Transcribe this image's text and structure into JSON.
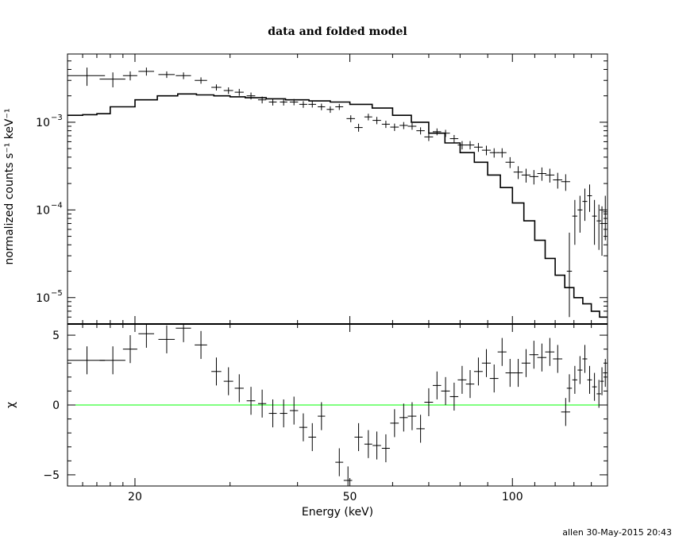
{
  "chart_data": {
    "title": "data and folded model",
    "xlabel": "Energy (keV)",
    "x_scale": "log",
    "xlim": [
      15,
      150
    ],
    "x_tick_labels": [
      "20",
      "50",
      "100"
    ],
    "footer": "allen 30-May-2015 20:43",
    "panels": [
      {
        "name": "spectrum",
        "type": "line",
        "ylabel": "normalized counts s⁻¹ keV⁻¹",
        "y_scale": "log",
        "ylim": [
          5e-06,
          0.006
        ],
        "y_tick_labels": [
          {
            "value": 0.001,
            "base": "10",
            "exp": "−3"
          },
          {
            "value": 0.0001,
            "base": "10",
            "exp": "−4"
          },
          {
            "value": 1e-05,
            "base": "10",
            "exp": "−5"
          }
        ],
        "data": [
          {
            "x": 16.3,
            "xerr": 1.3,
            "y": 0.0034,
            "yerr_lo": 0.0008,
            "yerr_hi": 0.0008
          },
          {
            "x": 18.2,
            "xerr": 1.0,
            "y": 0.0031,
            "yerr_lo": 0.0006,
            "yerr_hi": 0.0006
          },
          {
            "x": 19.6,
            "xerr": 0.6,
            "y": 0.0034,
            "yerr_lo": 0.0004,
            "yerr_hi": 0.0004
          },
          {
            "x": 21.0,
            "xerr": 0.7,
            "y": 0.0038,
            "yerr_lo": 0.0004,
            "yerr_hi": 0.0004
          },
          {
            "x": 22.9,
            "xerr": 0.8,
            "y": 0.0035,
            "yerr_lo": 0.0003,
            "yerr_hi": 0.0003
          },
          {
            "x": 24.6,
            "xerr": 0.8,
            "y": 0.0034,
            "yerr_lo": 0.0003,
            "yerr_hi": 0.0003
          },
          {
            "x": 26.5,
            "xerr": 0.7,
            "y": 0.003,
            "yerr_lo": 0.00025,
            "yerr_hi": 0.00025
          },
          {
            "x": 28.3,
            "xerr": 0.6,
            "y": 0.0025,
            "yerr_lo": 0.0002,
            "yerr_hi": 0.0002
          },
          {
            "x": 29.8,
            "xerr": 0.6,
            "y": 0.0023,
            "yerr_lo": 0.0002,
            "yerr_hi": 0.0002
          },
          {
            "x": 31.2,
            "xerr": 0.6,
            "y": 0.0022,
            "yerr_lo": 0.0002,
            "yerr_hi": 0.0002
          },
          {
            "x": 32.8,
            "xerr": 0.6,
            "y": 0.002,
            "yerr_lo": 0.00018,
            "yerr_hi": 0.00018
          },
          {
            "x": 34.4,
            "xerr": 0.6,
            "y": 0.0018,
            "yerr_lo": 0.00016,
            "yerr_hi": 0.00016
          },
          {
            "x": 36.0,
            "xerr": 0.6,
            "y": 0.0017,
            "yerr_lo": 0.00015,
            "yerr_hi": 0.00015
          },
          {
            "x": 37.7,
            "xerr": 0.6,
            "y": 0.0017,
            "yerr_lo": 0.00015,
            "yerr_hi": 0.00015
          },
          {
            "x": 39.4,
            "xerr": 0.7,
            "y": 0.0017,
            "yerr_lo": 0.00014,
            "yerr_hi": 0.00014
          },
          {
            "x": 41.0,
            "xerr": 0.7,
            "y": 0.0016,
            "yerr_lo": 0.00014,
            "yerr_hi": 0.00014
          },
          {
            "x": 42.6,
            "xerr": 0.7,
            "y": 0.0016,
            "yerr_lo": 0.00013,
            "yerr_hi": 0.00013
          },
          {
            "x": 44.3,
            "xerr": 0.7,
            "y": 0.0015,
            "yerr_lo": 0.00013,
            "yerr_hi": 0.00013
          },
          {
            "x": 46.0,
            "xerr": 0.7,
            "y": 0.0014,
            "yerr_lo": 0.00012,
            "yerr_hi": 0.00012
          },
          {
            "x": 47.8,
            "xerr": 0.8,
            "y": 0.0015,
            "yerr_lo": 0.00012,
            "yerr_hi": 0.00012
          },
          {
            "x": 50.2,
            "xerr": 0.9,
            "y": 0.0011,
            "yerr_lo": 0.0001,
            "yerr_hi": 0.0001
          },
          {
            "x": 51.9,
            "xerr": 0.9,
            "y": 0.00087,
            "yerr_lo": 9e-05,
            "yerr_hi": 9e-05
          },
          {
            "x": 54.1,
            "xerr": 0.9,
            "y": 0.00115,
            "yerr_lo": 0.0001,
            "yerr_hi": 0.0001
          },
          {
            "x": 56.1,
            "xerr": 1.0,
            "y": 0.00105,
            "yerr_lo": 0.0001,
            "yerr_hi": 0.0001
          },
          {
            "x": 58.3,
            "xerr": 1.0,
            "y": 0.00095,
            "yerr_lo": 9e-05,
            "yerr_hi": 9e-05
          },
          {
            "x": 60.5,
            "xerr": 1.1,
            "y": 0.00088,
            "yerr_lo": 8.5e-05,
            "yerr_hi": 8.5e-05
          },
          {
            "x": 62.9,
            "xerr": 1.1,
            "y": 0.00092,
            "yerr_lo": 8.5e-05,
            "yerr_hi": 8.5e-05
          },
          {
            "x": 65.2,
            "xerr": 1.2,
            "y": 0.0009,
            "yerr_lo": 8e-05,
            "yerr_hi": 8e-05
          },
          {
            "x": 67.6,
            "xerr": 1.2,
            "y": 0.0008,
            "yerr_lo": 7.5e-05,
            "yerr_hi": 7.5e-05
          },
          {
            "x": 70.0,
            "xerr": 1.3,
            "y": 0.00068,
            "yerr_lo": 7e-05,
            "yerr_hi": 7e-05
          },
          {
            "x": 72.5,
            "xerr": 1.3,
            "y": 0.00078,
            "yerr_lo": 7e-05,
            "yerr_hi": 7e-05
          },
          {
            "x": 75.2,
            "xerr": 1.4,
            "y": 0.00075,
            "yerr_lo": 7e-05,
            "yerr_hi": 7e-05
          },
          {
            "x": 78.0,
            "xerr": 1.4,
            "y": 0.00065,
            "yerr_lo": 6.5e-05,
            "yerr_hi": 6.5e-05
          },
          {
            "x": 80.7,
            "xerr": 1.5,
            "y": 0.00055,
            "yerr_lo": 6e-05,
            "yerr_hi": 6e-05
          },
          {
            "x": 83.5,
            "xerr": 1.5,
            "y": 0.00055,
            "yerr_lo": 6e-05,
            "yerr_hi": 6e-05
          },
          {
            "x": 86.5,
            "xerr": 1.6,
            "y": 0.00052,
            "yerr_lo": 6e-05,
            "yerr_hi": 6e-05
          },
          {
            "x": 89.5,
            "xerr": 1.7,
            "y": 0.00048,
            "yerr_lo": 6e-05,
            "yerr_hi": 6e-05
          },
          {
            "x": 92.5,
            "xerr": 1.7,
            "y": 0.00045,
            "yerr_lo": 5.5e-05,
            "yerr_hi": 5.5e-05
          },
          {
            "x": 95.7,
            "xerr": 1.8,
            "y": 0.00045,
            "yerr_lo": 5.5e-05,
            "yerr_hi": 5.5e-05
          },
          {
            "x": 99.0,
            "xerr": 1.9,
            "y": 0.00035,
            "yerr_lo": 5e-05,
            "yerr_hi": 5e-05
          },
          {
            "x": 102.5,
            "xerr": 2.0,
            "y": 0.00027,
            "yerr_lo": 4.5e-05,
            "yerr_hi": 4.5e-05
          },
          {
            "x": 106.0,
            "xerr": 2.0,
            "y": 0.00025,
            "yerr_lo": 4.5e-05,
            "yerr_hi": 4.5e-05
          },
          {
            "x": 109.6,
            "xerr": 2.1,
            "y": 0.00024,
            "yerr_lo": 4.5e-05,
            "yerr_hi": 4.5e-05
          },
          {
            "x": 113.4,
            "xerr": 2.2,
            "y": 0.00026,
            "yerr_lo": 4.5e-05,
            "yerr_hi": 4.5e-05
          },
          {
            "x": 117.3,
            "xerr": 2.3,
            "y": 0.00025,
            "yerr_lo": 4.5e-05,
            "yerr_hi": 4.5e-05
          },
          {
            "x": 121.3,
            "xerr": 2.4,
            "y": 0.00022,
            "yerr_lo": 4.5e-05,
            "yerr_hi": 4.5e-05
          },
          {
            "x": 125.5,
            "xerr": 2.4,
            "y": 0.00021,
            "yerr_lo": 4.5e-05,
            "yerr_hi": 4.5e-05
          },
          {
            "x": 127.5,
            "xerr": 1.4,
            "y": 2e-05,
            "yerr_lo": 1.4e-05,
            "yerr_hi": 3.5e-05
          },
          {
            "x": 130.5,
            "xerr": 1.4,
            "y": 8.5e-05,
            "yerr_lo": 4.5e-05,
            "yerr_hi": 4.5e-05
          },
          {
            "x": 133.4,
            "xerr": 1.4,
            "y": 0.0001,
            "yerr_lo": 4.5e-05,
            "yerr_hi": 4.5e-05
          },
          {
            "x": 136.2,
            "xerr": 1.4,
            "y": 0.000125,
            "yerr_lo": 5e-05,
            "yerr_hi": 5e-05
          },
          {
            "x": 139.0,
            "xerr": 1.4,
            "y": 0.000145,
            "yerr_lo": 5e-05,
            "yerr_hi": 5e-05
          },
          {
            "x": 141.9,
            "xerr": 1.4,
            "y": 8.5e-05,
            "yerr_lo": 4.5e-05,
            "yerr_hi": 4.5e-05
          },
          {
            "x": 144.6,
            "xerr": 1.4,
            "y": 7.5e-05,
            "yerr_lo": 4e-05,
            "yerr_hi": 4e-05
          },
          {
            "x": 146.5,
            "xerr": 1.2,
            "y": 7e-05,
            "yerr_lo": 4e-05,
            "yerr_hi": 4e-05
          },
          {
            "x": 148.6,
            "xerr": 1.4,
            "y": 9.5e-05,
            "yerr_lo": 5e-05,
            "yerr_hi": 5e-05
          }
        ],
        "model_x": [
          15,
          16,
          17,
          18,
          20,
          22,
          24,
          26,
          28,
          30,
          32,
          35,
          38,
          42,
          46,
          50,
          55,
          60,
          65,
          70,
          75,
          80,
          85,
          90,
          95,
          100,
          105,
          110,
          115,
          120,
          125,
          130,
          135,
          140,
          145,
          150
        ],
        "model_y": [
          0.0012,
          0.00122,
          0.00125,
          0.0015,
          0.0018,
          0.002,
          0.0021,
          0.00205,
          0.002,
          0.00195,
          0.0019,
          0.00185,
          0.0018,
          0.00175,
          0.0017,
          0.0016,
          0.00145,
          0.0012,
          0.001,
          0.00075,
          0.00058,
          0.00045,
          0.00035,
          0.00025,
          0.00018,
          0.00012,
          7.5e-05,
          4.5e-05,
          2.8e-05,
          1.8e-05,
          1.3e-05,
          1e-05,
          8.5e-06,
          7e-06,
          6e-06,
          5.2e-06
        ]
      },
      {
        "name": "residuals",
        "type": "scatter",
        "ylabel": "χ",
        "ylim": [
          -5.8,
          5.8
        ],
        "y_tick_labels": [
          5,
          0,
          -5
        ],
        "reference_line": {
          "y": 0,
          "color": "#00ff00"
        },
        "data": [
          {
            "x": 16.3,
            "xerr": 1.3,
            "y": 3.2,
            "yerr": 1.0
          },
          {
            "x": 18.2,
            "xerr": 1.0,
            "y": 3.2,
            "yerr": 1.0
          },
          {
            "x": 19.6,
            "xerr": 0.6,
            "y": 4.0,
            "yerr": 1.0
          },
          {
            "x": 21.0,
            "xerr": 0.7,
            "y": 5.1,
            "yerr": 1.0
          },
          {
            "x": 22.9,
            "xerr": 0.8,
            "y": 4.7,
            "yerr": 1.0
          },
          {
            "x": 24.6,
            "xerr": 0.8,
            "y": 5.5,
            "yerr": 1.0
          },
          {
            "x": 26.5,
            "xerr": 0.7,
            "y": 4.3,
            "yerr": 1.0
          },
          {
            "x": 28.3,
            "xerr": 0.6,
            "y": 2.4,
            "yerr": 1.0
          },
          {
            "x": 29.8,
            "xerr": 0.6,
            "y": 1.7,
            "yerr": 1.0
          },
          {
            "x": 31.2,
            "xerr": 0.6,
            "y": 1.2,
            "yerr": 1.0
          },
          {
            "x": 32.8,
            "xerr": 0.6,
            "y": 0.3,
            "yerr": 1.0
          },
          {
            "x": 34.4,
            "xerr": 0.6,
            "y": 0.1,
            "yerr": 1.0
          },
          {
            "x": 36.0,
            "xerr": 0.6,
            "y": -0.6,
            "yerr": 1.0
          },
          {
            "x": 37.7,
            "xerr": 0.6,
            "y": -0.6,
            "yerr": 1.0
          },
          {
            "x": 39.4,
            "xerr": 0.7,
            "y": -0.4,
            "yerr": 1.0
          },
          {
            "x": 41.0,
            "xerr": 0.7,
            "y": -1.6,
            "yerr": 1.0
          },
          {
            "x": 42.6,
            "xerr": 0.7,
            "y": -2.3,
            "yerr": 1.0
          },
          {
            "x": 44.3,
            "xerr": 0.7,
            "y": -0.8,
            "yerr": 1.0
          },
          {
            "x": 47.8,
            "xerr": 0.8,
            "y": -4.1,
            "yerr": 1.0
          },
          {
            "x": 49.6,
            "xerr": 0.9,
            "y": -5.4,
            "yerr": 1.0
          },
          {
            "x": 51.9,
            "xerr": 0.9,
            "y": -2.3,
            "yerr": 1.0
          },
          {
            "x": 54.1,
            "xerr": 0.9,
            "y": -2.8,
            "yerr": 1.0
          },
          {
            "x": 56.1,
            "xerr": 1.0,
            "y": -2.9,
            "yerr": 1.0
          },
          {
            "x": 58.3,
            "xerr": 1.0,
            "y": -3.1,
            "yerr": 1.0
          },
          {
            "x": 60.5,
            "xerr": 1.1,
            "y": -1.3,
            "yerr": 1.0
          },
          {
            "x": 62.9,
            "xerr": 1.1,
            "y": -0.9,
            "yerr": 1.0
          },
          {
            "x": 65.2,
            "xerr": 1.2,
            "y": -0.8,
            "yerr": 1.0
          },
          {
            "x": 67.6,
            "xerr": 1.2,
            "y": -1.7,
            "yerr": 1.0
          },
          {
            "x": 70.0,
            "xerr": 1.3,
            "y": 0.2,
            "yerr": 1.0
          },
          {
            "x": 72.5,
            "xerr": 1.3,
            "y": 1.4,
            "yerr": 1.0
          },
          {
            "x": 75.2,
            "xerr": 1.4,
            "y": 1.0,
            "yerr": 1.0
          },
          {
            "x": 78.0,
            "xerr": 1.4,
            "y": 0.6,
            "yerr": 1.0
          },
          {
            "x": 80.7,
            "xerr": 1.5,
            "y": 1.8,
            "yerr": 1.0
          },
          {
            "x": 83.5,
            "xerr": 1.5,
            "y": 1.5,
            "yerr": 1.0
          },
          {
            "x": 86.5,
            "xerr": 1.6,
            "y": 2.4,
            "yerr": 1.0
          },
          {
            "x": 89.5,
            "xerr": 1.7,
            "y": 3.0,
            "yerr": 1.0
          },
          {
            "x": 92.5,
            "xerr": 1.7,
            "y": 1.9,
            "yerr": 1.0
          },
          {
            "x": 95.7,
            "xerr": 1.8,
            "y": 3.8,
            "yerr": 1.0
          },
          {
            "x": 99.0,
            "xerr": 1.9,
            "y": 2.3,
            "yerr": 1.0
          },
          {
            "x": 102.5,
            "xerr": 2.0,
            "y": 2.3,
            "yerr": 1.0
          },
          {
            "x": 106.0,
            "xerr": 2.0,
            "y": 3.0,
            "yerr": 1.0
          },
          {
            "x": 109.6,
            "xerr": 2.1,
            "y": 3.6,
            "yerr": 1.0
          },
          {
            "x": 113.4,
            "xerr": 2.2,
            "y": 3.4,
            "yerr": 1.0
          },
          {
            "x": 117.3,
            "xerr": 2.3,
            "y": 3.8,
            "yerr": 1.0
          },
          {
            "x": 121.3,
            "xerr": 2.4,
            "y": 3.3,
            "yerr": 1.0
          },
          {
            "x": 125.5,
            "xerr": 2.4,
            "y": -0.5,
            "yerr": 1.0
          },
          {
            "x": 127.5,
            "xerr": 1.4,
            "y": 1.2,
            "yerr": 1.0
          },
          {
            "x": 130.5,
            "xerr": 1.4,
            "y": 1.8,
            "yerr": 1.0
          },
          {
            "x": 133.4,
            "xerr": 1.4,
            "y": 2.5,
            "yerr": 1.0
          },
          {
            "x": 136.2,
            "xerr": 1.4,
            "y": 3.3,
            "yerr": 1.0
          },
          {
            "x": 139.0,
            "xerr": 1.4,
            "y": 1.8,
            "yerr": 1.0
          },
          {
            "x": 141.9,
            "xerr": 1.4,
            "y": 1.3,
            "yerr": 1.0
          },
          {
            "x": 144.6,
            "xerr": 1.4,
            "y": 0.8,
            "yerr": 1.0
          },
          {
            "x": 146.5,
            "xerr": 1.2,
            "y": 1.7,
            "yerr": 1.0
          },
          {
            "x": 148.6,
            "xerr": 1.4,
            "y": 2.3,
            "yerr": 1.0
          }
        ]
      }
    ]
  }
}
